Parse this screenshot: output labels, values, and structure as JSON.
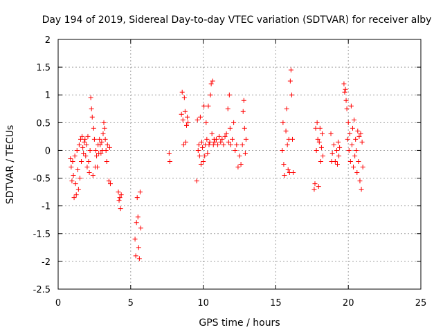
{
  "chart_data": {
    "type": "scatter",
    "title": "Day 194 of 2019, Sidereal Day-to-day VTEC variation (SDTVAR) for receiver alby",
    "xlabel": "GPS time / hours",
    "ylabel": "SDTVAR / TECUs",
    "xlim": [
      0,
      25
    ],
    "ylim": [
      -2.5,
      2
    ],
    "xticks": [
      0,
      5,
      10,
      15,
      20,
      25
    ],
    "xtick_labels": [
      "0",
      "5",
      "10",
      "15",
      "20",
      "25"
    ],
    "yticks": [
      -2.5,
      -2,
      -1.5,
      -1,
      -0.5,
      0,
      0.5,
      1,
      1.5,
      2
    ],
    "ytick_labels": [
      "-2.5",
      "-2",
      "-1.5",
      "-1",
      "-0.5",
      "0",
      "0.5",
      "1",
      "1.5",
      "2"
    ],
    "grid": true,
    "marker": "+",
    "marker_color": "#ff0000",
    "series": [
      {
        "name": "SDTVAR",
        "points": [
          [
            0.85,
            -0.15
          ],
          [
            0.9,
            -0.3
          ],
          [
            0.95,
            -0.55
          ],
          [
            1.0,
            -0.2
          ],
          [
            1.05,
            -0.45
          ],
          [
            1.1,
            -0.85
          ],
          [
            1.15,
            -0.1
          ],
          [
            1.2,
            -0.6
          ],
          [
            1.25,
            -0.8
          ],
          [
            1.3,
            0.0
          ],
          [
            1.35,
            -0.35
          ],
          [
            1.4,
            -0.7
          ],
          [
            1.45,
            0.1
          ],
          [
            1.5,
            -0.5
          ],
          [
            1.55,
            0.2
          ],
          [
            1.6,
            -0.2
          ],
          [
            1.65,
            0.25
          ],
          [
            1.7,
            0.05
          ],
          [
            1.75,
            -0.05
          ],
          [
            1.8,
            0.15
          ],
          [
            1.85,
            0.2
          ],
          [
            1.9,
            -0.1
          ],
          [
            1.95,
            0.1
          ],
          [
            2.0,
            -0.3
          ],
          [
            2.05,
            0.25
          ],
          [
            2.1,
            -0.2
          ],
          [
            2.15,
            -0.4
          ],
          [
            2.2,
            0.0
          ],
          [
            2.25,
            0.95
          ],
          [
            2.3,
            0.75
          ],
          [
            2.35,
            0.6
          ],
          [
            2.4,
            -0.45
          ],
          [
            2.45,
            0.4
          ],
          [
            2.5,
            0.2
          ],
          [
            2.55,
            -0.3
          ],
          [
            2.6,
            0.0
          ],
          [
            2.65,
            -0.1
          ],
          [
            2.7,
            -0.3
          ],
          [
            2.75,
            0.1
          ],
          [
            2.8,
            -0.05
          ],
          [
            2.85,
            0.2
          ],
          [
            2.9,
            0.1
          ],
          [
            2.95,
            -0.05
          ],
          [
            3.0,
            0.15
          ],
          [
            3.05,
            0.0
          ],
          [
            3.1,
            0.3
          ],
          [
            3.15,
            0.5
          ],
          [
            3.2,
            0.4
          ],
          [
            3.25,
            0.2
          ],
          [
            3.3,
            0.0
          ],
          [
            3.35,
            -0.2
          ],
          [
            3.4,
            0.1
          ],
          [
            3.5,
            -0.55
          ],
          [
            3.55,
            0.05
          ],
          [
            3.6,
            -0.6
          ],
          [
            4.15,
            -0.75
          ],
          [
            4.2,
            -0.9
          ],
          [
            4.25,
            -0.85
          ],
          [
            4.3,
            -1.05
          ],
          [
            4.35,
            -0.8
          ],
          [
            5.3,
            -1.6
          ],
          [
            5.35,
            -1.9
          ],
          [
            5.4,
            -1.3
          ],
          [
            5.45,
            -0.85
          ],
          [
            5.5,
            -1.2
          ],
          [
            5.55,
            -1.75
          ],
          [
            5.6,
            -1.95
          ],
          [
            5.65,
            -0.75
          ],
          [
            5.7,
            -1.4
          ],
          [
            7.65,
            -0.05
          ],
          [
            7.7,
            -0.2
          ],
          [
            8.5,
            0.65
          ],
          [
            8.55,
            1.05
          ],
          [
            8.6,
            0.55
          ],
          [
            8.65,
            0.1
          ],
          [
            8.7,
            0.95
          ],
          [
            8.75,
            0.7
          ],
          [
            8.8,
            0.15
          ],
          [
            8.85,
            0.45
          ],
          [
            8.9,
            0.6
          ],
          [
            8.95,
            0.5
          ],
          [
            9.55,
            -0.55
          ],
          [
            9.6,
            0.55
          ],
          [
            9.65,
            0.0
          ],
          [
            9.7,
            0.1
          ],
          [
            9.75,
            -0.1
          ],
          [
            9.8,
            0.6
          ],
          [
            9.85,
            -0.25
          ],
          [
            9.9,
            0.15
          ],
          [
            9.95,
            0.05
          ],
          [
            10.0,
            -0.2
          ],
          [
            10.05,
            0.8
          ],
          [
            10.1,
            -0.1
          ],
          [
            10.15,
            0.1
          ],
          [
            10.2,
            0.5
          ],
          [
            10.25,
            0.2
          ],
          [
            10.3,
            -0.05
          ],
          [
            10.35,
            0.8
          ],
          [
            10.4,
            0.1
          ],
          [
            10.45,
            0.15
          ],
          [
            10.5,
            1.0
          ],
          [
            10.55,
            1.2
          ],
          [
            10.6,
            0.3
          ],
          [
            10.65,
            1.25
          ],
          [
            10.7,
            0.1
          ],
          [
            10.75,
            0.2
          ],
          [
            10.8,
            0.15
          ],
          [
            10.9,
            0.2
          ],
          [
            11.0,
            0.1
          ],
          [
            11.1,
            0.25
          ],
          [
            11.2,
            0.15
          ],
          [
            11.3,
            0.2
          ],
          [
            11.4,
            0.1
          ],
          [
            11.5,
            0.25
          ],
          [
            11.6,
            0.3
          ],
          [
            11.7,
            0.75
          ],
          [
            11.75,
            0.15
          ],
          [
            11.8,
            1.0
          ],
          [
            11.85,
            0.4
          ],
          [
            11.9,
            0.1
          ],
          [
            12.0,
            0.2
          ],
          [
            12.1,
            0.5
          ],
          [
            12.2,
            0.0
          ],
          [
            12.3,
            0.1
          ],
          [
            12.4,
            -0.3
          ],
          [
            12.5,
            -0.1
          ],
          [
            12.6,
            -0.25
          ],
          [
            12.7,
            0.1
          ],
          [
            12.75,
            0.7
          ],
          [
            12.8,
            0.9
          ],
          [
            12.85,
            0.4
          ],
          [
            12.9,
            -0.05
          ],
          [
            12.95,
            0.2
          ],
          [
            15.45,
            0.0
          ],
          [
            15.5,
            0.5
          ],
          [
            15.55,
            -0.25
          ],
          [
            15.6,
            -0.45
          ],
          [
            15.7,
            0.35
          ],
          [
            15.75,
            0.75
          ],
          [
            15.8,
            0.1
          ],
          [
            15.85,
            -0.35
          ],
          [
            15.9,
            0.2
          ],
          [
            15.95,
            -0.4
          ],
          [
            16.0,
            1.25
          ],
          [
            16.05,
            1.45
          ],
          [
            16.1,
            1.0
          ],
          [
            16.15,
            0.2
          ],
          [
            16.2,
            -0.4
          ],
          [
            17.65,
            -0.7
          ],
          [
            17.7,
            -0.6
          ],
          [
            17.75,
            0.4
          ],
          [
            17.8,
            0.0
          ],
          [
            17.85,
            0.5
          ],
          [
            17.9,
            0.2
          ],
          [
            17.95,
            -0.65
          ],
          [
            18.0,
            0.15
          ],
          [
            18.05,
            0.4
          ],
          [
            18.1,
            -0.2
          ],
          [
            18.15,
            0.05
          ],
          [
            18.2,
            0.3
          ],
          [
            18.25,
            -0.1
          ],
          [
            18.8,
            0.3
          ],
          [
            18.85,
            -0.2
          ],
          [
            18.9,
            -0.05
          ],
          [
            19.0,
            0.1
          ],
          [
            19.1,
            -0.2
          ],
          [
            19.2,
            0.0
          ],
          [
            19.25,
            -0.25
          ],
          [
            19.3,
            0.15
          ],
          [
            19.35,
            -0.1
          ],
          [
            19.4,
            0.05
          ],
          [
            19.7,
            1.2
          ],
          [
            19.75,
            1.05
          ],
          [
            19.8,
            1.1
          ],
          [
            19.85,
            0.9
          ],
          [
            19.9,
            0.75
          ],
          [
            19.95,
            0.2
          ],
          [
            20.0,
            0.5
          ],
          [
            20.05,
            0.0
          ],
          [
            20.1,
            0.3
          ],
          [
            20.15,
            -0.2
          ],
          [
            20.2,
            0.8
          ],
          [
            20.25,
            0.1
          ],
          [
            20.3,
            0.4
          ],
          [
            20.35,
            -0.3
          ],
          [
            20.4,
            0.55
          ],
          [
            20.45,
            -0.1
          ],
          [
            20.5,
            0.2
          ],
          [
            20.55,
            0.0
          ],
          [
            20.6,
            -0.4
          ],
          [
            20.65,
            0.35
          ],
          [
            20.7,
            -0.2
          ],
          [
            20.75,
            0.25
          ],
          [
            20.8,
            -0.55
          ],
          [
            20.85,
            0.3
          ],
          [
            20.9,
            -0.7
          ],
          [
            20.95,
            0.15
          ],
          [
            21.0,
            -0.3
          ]
        ]
      }
    ]
  }
}
